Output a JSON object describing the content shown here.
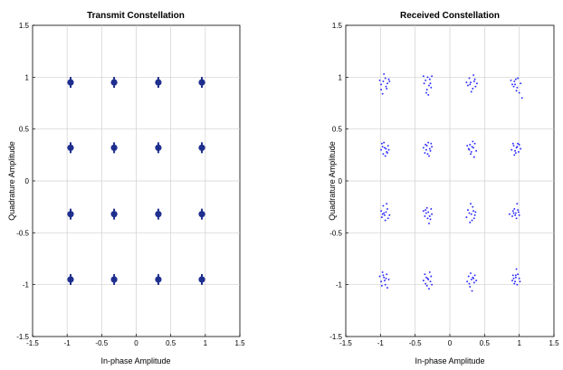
{
  "chart_data": [
    {
      "type": "scatter",
      "title": "Transmit Constellation",
      "xlabel": "In-phase Amplitude",
      "ylabel": "Quadrature Amplitude",
      "xlim": [
        -1.5,
        1.5
      ],
      "ylim": [
        -1.5,
        1.5
      ],
      "xticks": [
        "-1.5",
        "-1",
        "-0.5",
        "0",
        "0.5",
        "1",
        "1.5"
      ],
      "yticks": [
        "1.5",
        "1",
        "0.5",
        "0",
        "-0.5",
        "-1",
        "-1.5"
      ],
      "grid": true,
      "marker_color": "#1f2f8f",
      "marker": "filled-dot",
      "series": [
        {
          "points": [
            [
              -0.95,
              0.95
            ],
            [
              -0.32,
              0.95
            ],
            [
              0.32,
              0.95
            ],
            [
              0.95,
              0.95
            ],
            [
              -0.95,
              0.32
            ],
            [
              -0.32,
              0.32
            ],
            [
              0.32,
              0.32
            ],
            [
              0.95,
              0.32
            ],
            [
              -0.95,
              -0.32
            ],
            [
              -0.32,
              -0.32
            ],
            [
              0.32,
              -0.32
            ],
            [
              0.95,
              -0.32
            ],
            [
              -0.95,
              -0.95
            ],
            [
              -0.32,
              -0.95
            ],
            [
              0.32,
              -0.95
            ],
            [
              0.95,
              -0.95
            ]
          ]
        }
      ]
    },
    {
      "type": "scatter",
      "title": "Received Constellation",
      "xlabel": "In-phase Amplitude",
      "ylabel": "Quadrature Amplitude",
      "xlim": [
        -1.5,
        1.5
      ],
      "ylim": [
        -1.5,
        1.5
      ],
      "xticks": [
        "-1.5",
        "-1",
        "-0.5",
        "0",
        "0.5",
        "1",
        "1.5"
      ],
      "yticks": [
        "1.5",
        "1",
        "0.5",
        "0",
        "-0.5",
        "-1",
        "-1.5"
      ],
      "grid": true,
      "marker_color": "#2a2aff",
      "marker": "small-dot",
      "series": [
        {
          "points": [
            [
              -0.93,
              0.99
            ],
            [
              -0.99,
              0.93
            ],
            [
              -0.91,
              0.89
            ],
            [
              -0.97,
              0.84
            ],
            [
              -0.87,
              0.96
            ],
            [
              -1.01,
              0.97
            ],
            [
              -0.95,
              1.03
            ],
            [
              -0.9,
              0.94
            ],
            [
              -0.99,
              0.88
            ],
            [
              -0.92,
              0.91
            ],
            [
              -0.88,
              0.98
            ],
            [
              -0.96,
              0.96
            ],
            [
              -0.32,
              1.0
            ],
            [
              -0.37,
              0.94
            ],
            [
              -0.27,
              0.9
            ],
            [
              -0.34,
              0.85
            ],
            [
              -0.29,
              0.98
            ],
            [
              -0.38,
              1.01
            ],
            [
              -0.3,
              0.92
            ],
            [
              -0.33,
              0.88
            ],
            [
              -0.26,
              1.01
            ],
            [
              -0.35,
              0.97
            ],
            [
              -0.31,
              0.83
            ],
            [
              -0.28,
              0.94
            ],
            [
              0.3,
              0.95
            ],
            [
              0.36,
              0.98
            ],
            [
              0.26,
              0.92
            ],
            [
              0.33,
              0.89
            ],
            [
              0.39,
              0.94
            ],
            [
              0.28,
              0.99
            ],
            [
              0.34,
              1.02
            ],
            [
              0.24,
              0.95
            ],
            [
              0.31,
              0.86
            ],
            [
              0.37,
              0.91
            ],
            [
              0.29,
              0.93
            ],
            [
              0.35,
              0.96
            ],
            [
              0.95,
              0.98
            ],
            [
              0.9,
              0.93
            ],
            [
              0.97,
              0.9
            ],
            [
              1.0,
              0.85
            ],
            [
              0.93,
              0.96
            ],
            [
              0.88,
              0.97
            ],
            [
              1.02,
              0.94
            ],
            [
              0.96,
              0.87
            ],
            [
              1.04,
              0.8
            ],
            [
              0.92,
              0.91
            ],
            [
              0.98,
              0.99
            ],
            [
              0.94,
              0.93
            ],
            [
              -0.97,
              0.33
            ],
            [
              -0.91,
              0.28
            ],
            [
              -0.95,
              0.37
            ],
            [
              -0.88,
              0.3
            ],
            [
              -0.99,
              0.3
            ],
            [
              -0.93,
              0.24
            ],
            [
              -0.89,
              0.34
            ],
            [
              -0.96,
              0.26
            ],
            [
              -0.92,
              0.31
            ],
            [
              -0.98,
              0.36
            ],
            [
              -0.9,
              0.27
            ],
            [
              -0.94,
              0.32
            ],
            [
              -0.33,
              0.34
            ],
            [
              -0.28,
              0.29
            ],
            [
              -0.36,
              0.27
            ],
            [
              -0.31,
              0.37
            ],
            [
              -0.26,
              0.33
            ],
            [
              -0.38,
              0.32
            ],
            [
              -0.3,
              0.24
            ],
            [
              -0.34,
              0.3
            ],
            [
              -0.27,
              0.36
            ],
            [
              -0.35,
              0.35
            ],
            [
              -0.29,
              0.31
            ],
            [
              -0.32,
              0.26
            ],
            [
              0.32,
              0.33
            ],
            [
              0.28,
              0.3
            ],
            [
              0.36,
              0.36
            ],
            [
              0.3,
              0.26
            ],
            [
              0.25,
              0.34
            ],
            [
              0.38,
              0.29
            ],
            [
              0.33,
              0.38
            ],
            [
              0.29,
              0.35
            ],
            [
              0.35,
              0.23
            ],
            [
              0.27,
              0.31
            ],
            [
              0.34,
              0.32
            ],
            [
              0.31,
              0.28
            ],
            [
              0.96,
              0.32
            ],
            [
              0.91,
              0.36
            ],
            [
              0.99,
              0.28
            ],
            [
              0.93,
              0.25
            ],
            [
              1.0,
              0.35
            ],
            [
              0.89,
              0.3
            ],
            [
              0.97,
              0.33
            ],
            [
              0.94,
              0.29
            ],
            [
              1.02,
              0.31
            ],
            [
              0.92,
              0.34
            ],
            [
              0.95,
              0.27
            ],
            [
              0.98,
              0.36
            ],
            [
              -0.95,
              -0.31
            ],
            [
              -0.9,
              -0.27
            ],
            [
              -0.98,
              -0.35
            ],
            [
              -0.93,
              -0.38
            ],
            [
              -0.87,
              -0.33
            ],
            [
              -0.96,
              -0.24
            ],
            [
              -0.92,
              -0.3
            ],
            [
              -0.99,
              -0.29
            ],
            [
              -0.89,
              -0.36
            ],
            [
              -0.94,
              -0.33
            ],
            [
              -0.91,
              -0.22
            ],
            [
              -0.97,
              -0.32
            ],
            [
              -0.31,
              -0.3
            ],
            [
              -0.36,
              -0.34
            ],
            [
              -0.28,
              -0.37
            ],
            [
              -0.33,
              -0.26
            ],
            [
              -0.26,
              -0.32
            ],
            [
              -0.38,
              -0.29
            ],
            [
              -0.3,
              -0.41
            ],
            [
              -0.34,
              -0.31
            ],
            [
              -0.29,
              -0.34
            ],
            [
              -0.35,
              -0.28
            ],
            [
              -0.32,
              -0.36
            ],
            [
              -0.27,
              -0.27
            ],
            [
              0.31,
              -0.32
            ],
            [
              0.26,
              -0.28
            ],
            [
              0.35,
              -0.36
            ],
            [
              0.29,
              -0.4
            ],
            [
              0.37,
              -0.3
            ],
            [
              0.33,
              -0.25
            ],
            [
              0.24,
              -0.35
            ],
            [
              0.3,
              -0.22
            ],
            [
              0.36,
              -0.33
            ],
            [
              0.28,
              -0.31
            ],
            [
              0.32,
              -0.38
            ],
            [
              0.34,
              -0.29
            ],
            [
              0.95,
              -0.31
            ],
            [
              0.9,
              -0.34
            ],
            [
              0.98,
              -0.28
            ],
            [
              0.93,
              -0.27
            ],
            [
              0.86,
              -0.32
            ],
            [
              1.0,
              -0.33
            ],
            [
              0.96,
              -0.36
            ],
            [
              0.91,
              -0.29
            ],
            [
              0.97,
              -0.22
            ],
            [
              0.94,
              -0.33
            ],
            [
              0.99,
              -0.3
            ],
            [
              0.92,
              -0.31
            ],
            [
              -0.95,
              -0.93
            ],
            [
              -0.91,
              -0.9
            ],
            [
              -0.99,
              -0.97
            ],
            [
              -0.93,
              -1.0
            ],
            [
              -0.88,
              -0.95
            ],
            [
              -0.97,
              -0.88
            ],
            [
              -1.01,
              -0.92
            ],
            [
              -0.94,
              -0.96
            ],
            [
              -0.9,
              -1.03
            ],
            [
              -0.96,
              -0.91
            ],
            [
              -0.92,
              -0.94
            ],
            [
              -0.98,
              -1.01
            ],
            [
              -0.32,
              -0.94
            ],
            [
              -0.36,
              -0.9
            ],
            [
              -0.28,
              -0.97
            ],
            [
              -0.33,
              -1.01
            ],
            [
              -0.27,
              -0.92
            ],
            [
              -0.38,
              -0.96
            ],
            [
              -0.3,
              -1.04
            ],
            [
              -0.34,
              -0.93
            ],
            [
              -0.29,
              -0.88
            ],
            [
              -0.35,
              -0.99
            ],
            [
              -0.31,
              -0.95
            ],
            [
              -0.26,
              -1.0
            ],
            [
              0.31,
              -0.95
            ],
            [
              0.27,
              -0.92
            ],
            [
              0.35,
              -0.98
            ],
            [
              0.29,
              -1.02
            ],
            [
              0.36,
              -0.91
            ],
            [
              0.32,
              -1.06
            ],
            [
              0.25,
              -0.97
            ],
            [
              0.34,
              -0.94
            ],
            [
              0.3,
              -0.89
            ],
            [
              0.38,
              -0.96
            ],
            [
              0.28,
              -0.99
            ],
            [
              0.33,
              -0.93
            ],
            [
              0.95,
              -0.93
            ],
            [
              0.9,
              -0.96
            ],
            [
              0.98,
              -0.9
            ],
            [
              0.93,
              -0.99
            ],
            [
              1.0,
              -0.94
            ],
            [
              0.91,
              -0.91
            ],
            [
              0.96,
              -0.85
            ],
            [
              0.94,
              -0.97
            ],
            [
              1.01,
              -0.97
            ],
            [
              0.92,
              -0.94
            ],
            [
              0.97,
              -1.0
            ],
            [
              0.95,
              -0.91
            ]
          ]
        }
      ]
    }
  ]
}
